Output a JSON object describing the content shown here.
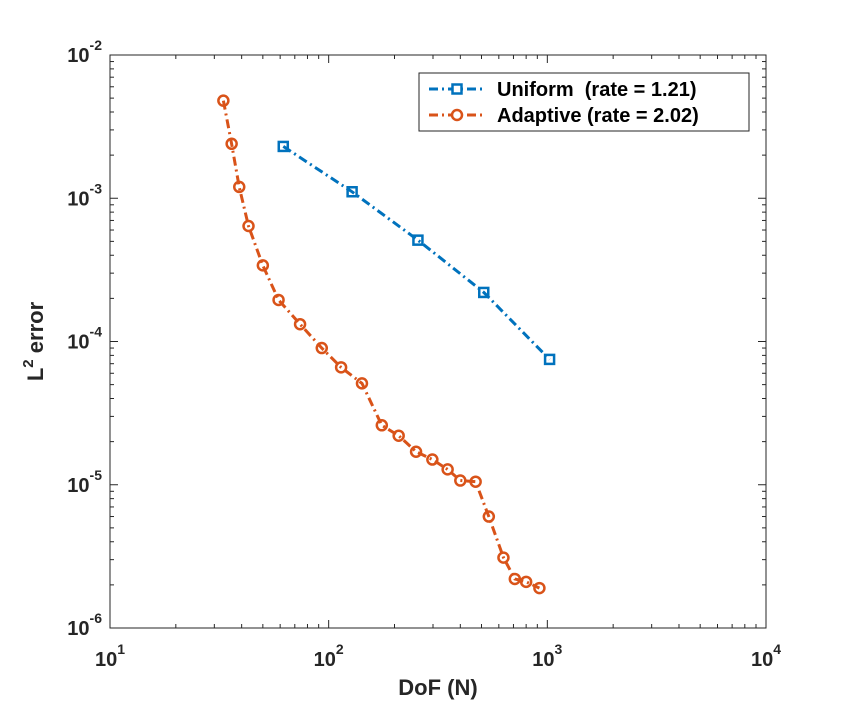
{
  "chart_data": {
    "type": "line",
    "xscale": "log",
    "yscale": "log",
    "xlim": [
      10,
      10000
    ],
    "ylim": [
      1e-06,
      0.01
    ],
    "xlabel": "DoF (N)",
    "ylabel": {
      "base": "L",
      "sup": "2",
      "rest": " error"
    },
    "title": "",
    "xticks": [
      {
        "value": 10,
        "base": "10",
        "exp": "1"
      },
      {
        "value": 100,
        "base": "10",
        "exp": "2"
      },
      {
        "value": 1000,
        "base": "10",
        "exp": "3"
      },
      {
        "value": 10000,
        "base": "10",
        "exp": "4"
      }
    ],
    "yticks": [
      {
        "value": 1e-06,
        "base": "10",
        "exp": "-6"
      },
      {
        "value": 1e-05,
        "base": "10",
        "exp": "-5"
      },
      {
        "value": 0.0001,
        "base": "10",
        "exp": "-4"
      },
      {
        "value": 0.001,
        "base": "10",
        "exp": "-3"
      },
      {
        "value": 0.01,
        "base": "10",
        "exp": "-2"
      }
    ],
    "legend_position": "top-right",
    "series": [
      {
        "name": "Uniform  (rate = 1.21)",
        "color": "#0072BD",
        "marker": "square",
        "x": [
          62,
          128,
          256,
          512,
          1024
        ],
        "y": [
          0.0023,
          0.00111,
          0.00051,
          0.00022,
          7.5e-05
        ]
      },
      {
        "name": "Adaptive (rate = 2.02)",
        "color": "#D95319",
        "marker": "circle",
        "x": [
          33,
          36,
          39,
          43,
          50,
          59,
          74,
          93,
          114,
          142,
          175,
          209,
          251,
          298,
          350,
          400,
          470,
          540,
          630,
          710,
          800,
          920
        ],
        "y": [
          0.0048,
          0.0024,
          0.0012,
          0.00064,
          0.00034,
          0.000195,
          0.000132,
          9e-05,
          6.6e-05,
          5.1e-05,
          2.6e-05,
          2.2e-05,
          1.7e-05,
          1.5e-05,
          1.28e-05,
          1.07e-05,
          1.05e-05,
          6e-06,
          3.1e-06,
          2.2e-06,
          2.1e-06,
          1.9e-06
        ]
      }
    ]
  }
}
